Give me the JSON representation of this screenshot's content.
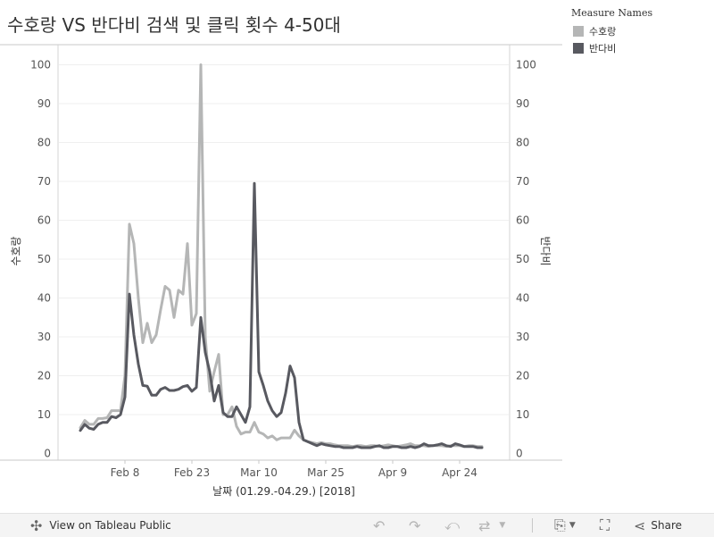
{
  "title": "수호랑 VS 반다비 검색 및 클릭 횟수 4-50대",
  "legend": {
    "title": "Measure Names",
    "items": [
      {
        "label": "수호랑",
        "color": "#b5b6b6"
      },
      {
        "label": "반다비",
        "color": "#585960"
      }
    ]
  },
  "chart_data": {
    "type": "line",
    "xlabel": "날짜 (01.29.-04.29.) [2018]",
    "ylabel": "수호랑",
    "ylabel_right": "반다비",
    "x_start": "2018-01-29",
    "x_ticks": [
      {
        "date": "2018-02-08",
        "label": "Feb 8"
      },
      {
        "date": "2018-02-23",
        "label": "Feb 23"
      },
      {
        "date": "2018-03-10",
        "label": "Mar 10"
      },
      {
        "date": "2018-03-25",
        "label": "Mar 25"
      },
      {
        "date": "2018-04-09",
        "label": "Apr 9"
      },
      {
        "date": "2018-04-24",
        "label": "Apr 24"
      }
    ],
    "y_ticks": [
      0,
      10,
      20,
      30,
      40,
      50,
      60,
      70,
      80,
      90,
      100
    ],
    "ylim": [
      0,
      100
    ],
    "grid": true,
    "legend_position": "top-right",
    "series": [
      {
        "name": "수호랑",
        "color": "#b5b6b6",
        "values": [
          6.6,
          8.5,
          7.5,
          7.5,
          9.0,
          9.0,
          9.2,
          11.0,
          11.0,
          11.0,
          20.0,
          59.0,
          54.0,
          40.0,
          28.5,
          33.5,
          28.5,
          30.5,
          37.0,
          43.0,
          42.0,
          35.0,
          42.0,
          41.0,
          54.0,
          33.0,
          36.0,
          100.0,
          30.0,
          16.0,
          21.0,
          25.5,
          10.0,
          10.0,
          12.0,
          7.0,
          5.0,
          5.5,
          5.5,
          8.0,
          5.5,
          5.0,
          4.0,
          4.5,
          3.5,
          4.0,
          4.0,
          4.0,
          6.0,
          4.5,
          3.5,
          3.0,
          2.8,
          2.5,
          2.8,
          2.5,
          2.5,
          2.2,
          2.0,
          2.0,
          2.0,
          1.8,
          2.0,
          2.0,
          1.8,
          2.0,
          2.0,
          1.8,
          2.0,
          2.2,
          2.0,
          1.8,
          2.0,
          2.2,
          2.5,
          2.0,
          2.0,
          2.0,
          1.8,
          2.0,
          2.0,
          2.0,
          1.8,
          2.0,
          2.0,
          2.0,
          1.8,
          2.0,
          2.0,
          1.8,
          1.8
        ]
      },
      {
        "name": "반다비",
        "color": "#585960",
        "values": [
          5.9,
          7.5,
          6.5,
          6.2,
          7.5,
          8.0,
          8.0,
          9.5,
          9.2,
          10.0,
          14.5,
          41.0,
          30.5,
          23.0,
          17.5,
          17.3,
          15.0,
          15.0,
          16.5,
          17.0,
          16.2,
          16.2,
          16.5,
          17.2,
          17.5,
          16.0,
          17.0,
          35.0,
          26.0,
          21.0,
          13.5,
          17.5,
          10.5,
          9.5,
          9.5,
          12.0,
          10.0,
          8.0,
          12.0,
          69.5,
          21.0,
          17.5,
          13.5,
          11.0,
          9.5,
          10.5,
          15.5,
          22.5,
          19.5,
          8.0,
          3.5,
          3.0,
          2.5,
          2.0,
          2.5,
          2.2,
          2.0,
          1.8,
          1.8,
          1.5,
          1.5,
          1.5,
          1.8,
          1.5,
          1.5,
          1.5,
          1.8,
          2.0,
          1.5,
          1.5,
          1.8,
          1.8,
          1.5,
          1.5,
          1.8,
          1.5,
          1.8,
          2.5,
          2.0,
          2.0,
          2.2,
          2.5,
          2.0,
          1.8,
          2.5,
          2.2,
          1.8,
          1.8,
          1.8,
          1.5,
          1.5
        ]
      }
    ]
  },
  "toolbar": {
    "view_label": "View on Tableau Public",
    "share_label": "Share"
  }
}
